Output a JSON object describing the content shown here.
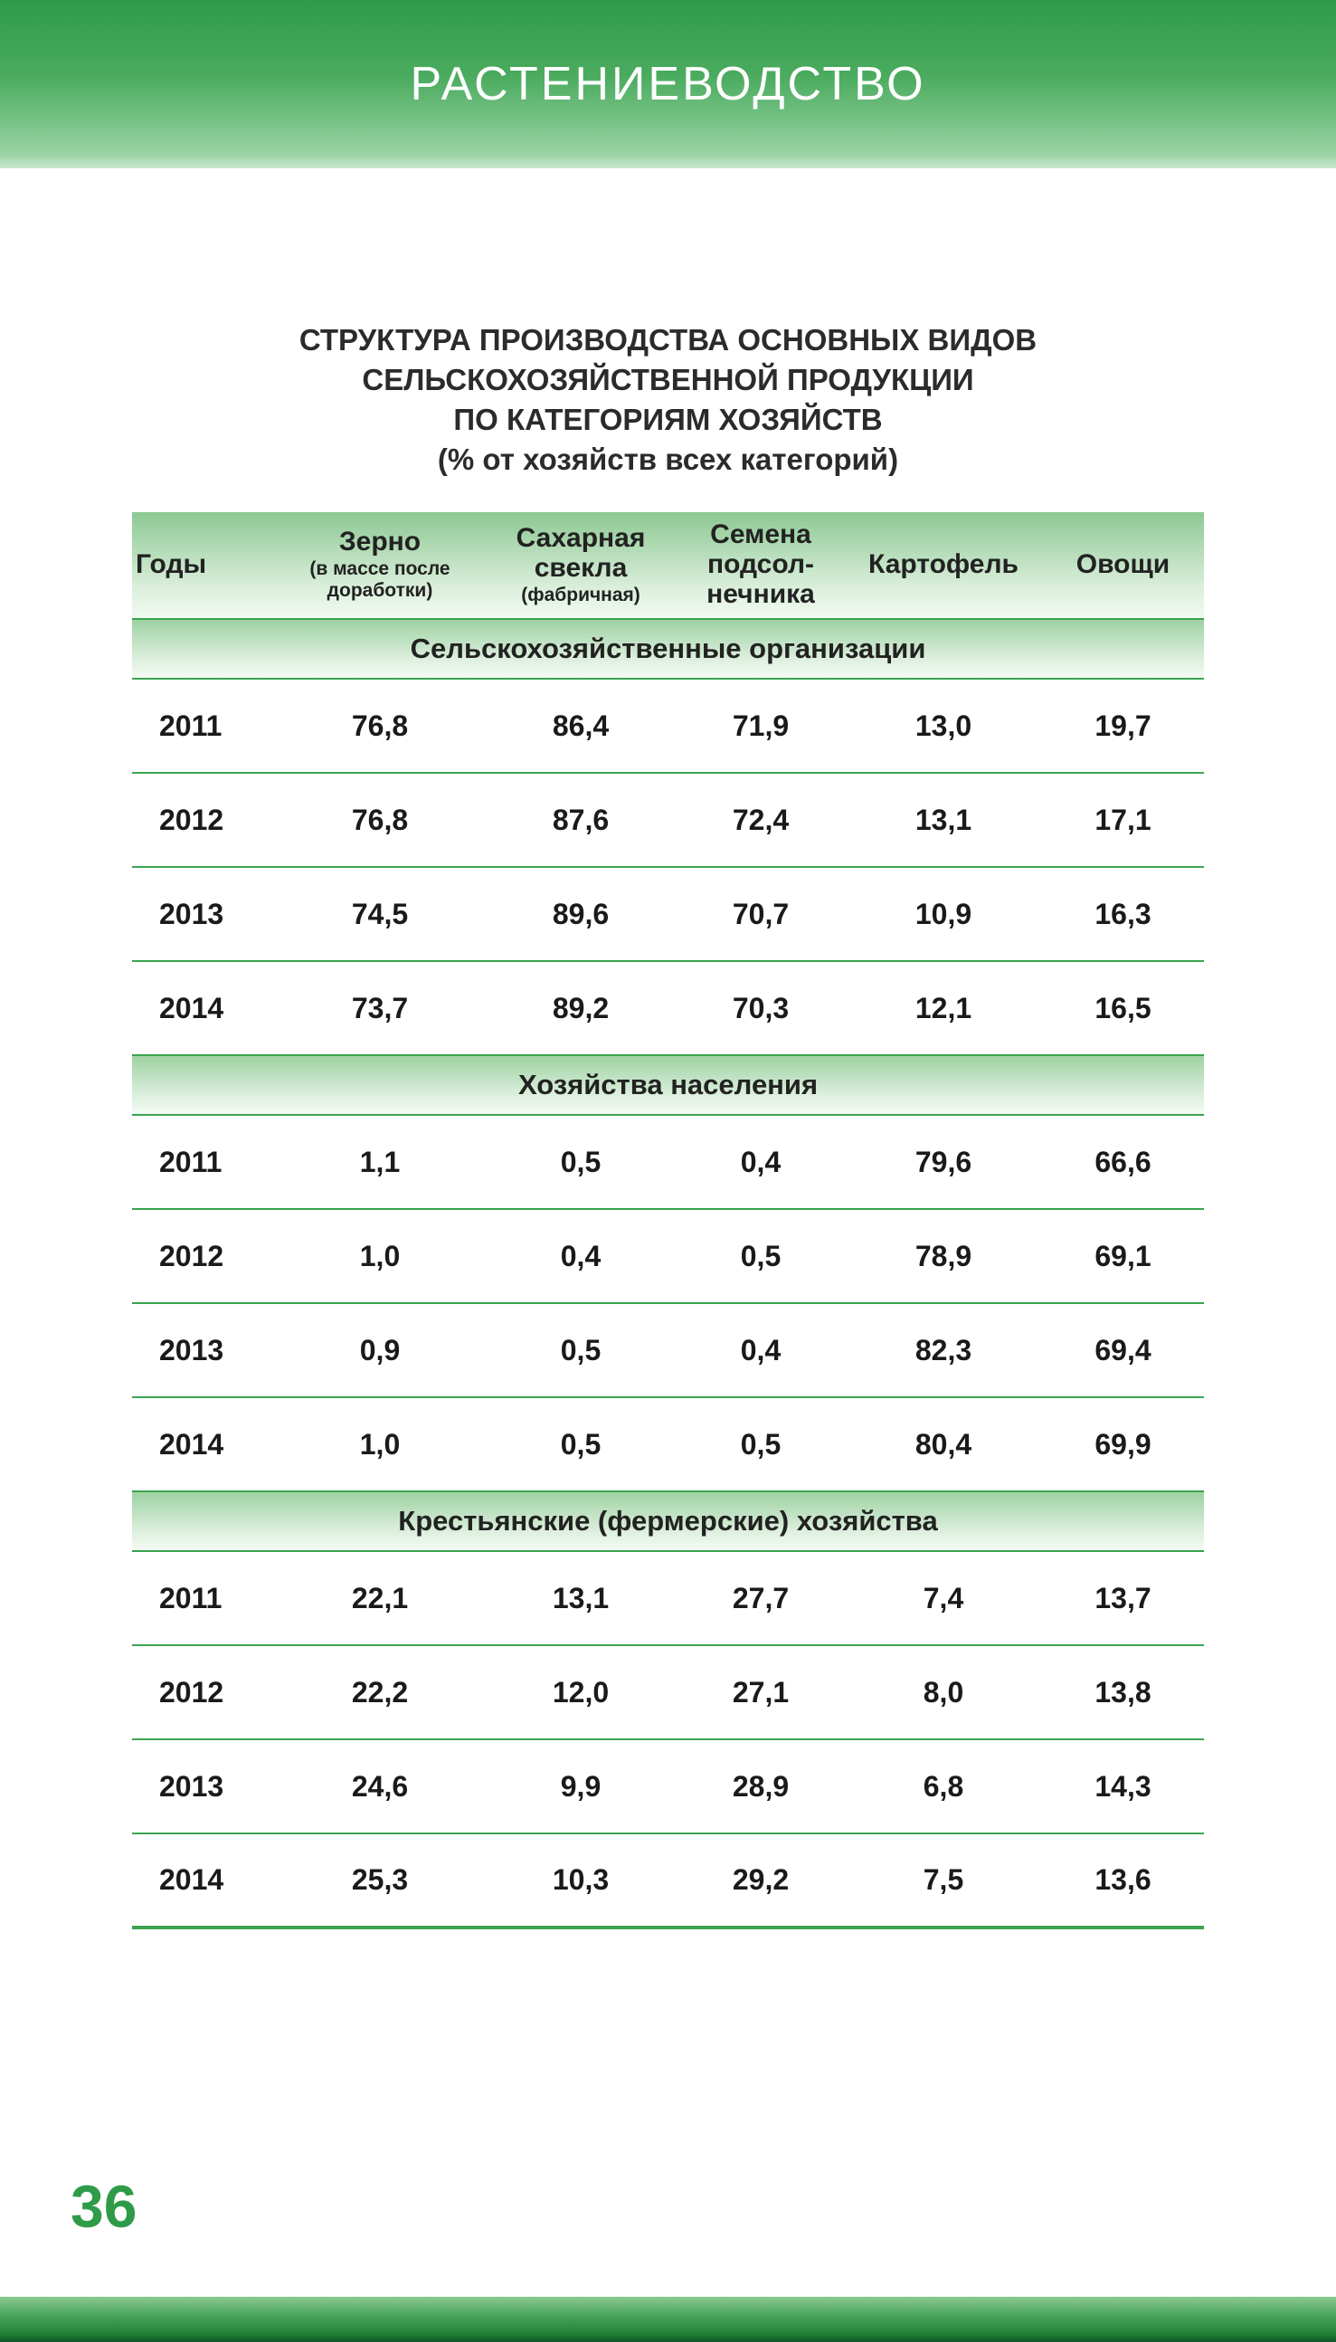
{
  "banner": {
    "title": "РАСТЕНИЕВОДСТВО"
  },
  "table": {
    "title_lines": [
      "СТРУКТУРА ПРОИЗВОДСТВА ОСНОВНЫХ ВИДОВ",
      "СЕЛЬСКОХОЗЯЙСТВЕННОЙ ПРОДУКЦИИ",
      "ПО КАТЕГОРИЯМ ХОЗЯЙСТВ",
      "(% от хозяйств всех категорий)"
    ],
    "columns": [
      {
        "title": [
          "Годы"
        ],
        "note": []
      },
      {
        "title": [
          "Зерно"
        ],
        "note": [
          "(в массе после",
          "доработки)"
        ]
      },
      {
        "title": [
          "Сахарная",
          "свекла"
        ],
        "note": [
          "(фабричная)"
        ]
      },
      {
        "title": [
          "Семена",
          "подсол-",
          "нечника"
        ],
        "note": []
      },
      {
        "title": [
          "Картофель"
        ],
        "note": []
      },
      {
        "title": [
          "Овощи"
        ],
        "note": []
      }
    ],
    "sections": [
      {
        "header": "Сельскохозяйственные организации",
        "rows": [
          [
            "2011",
            "76,8",
            "86,4",
            "71,9",
            "13,0",
            "19,7"
          ],
          [
            "2012",
            "76,8",
            "87,6",
            "72,4",
            "13,1",
            "17,1"
          ],
          [
            "2013",
            "74,5",
            "89,6",
            "70,7",
            "10,9",
            "16,3"
          ],
          [
            "2014",
            "73,7",
            "89,2",
            "70,3",
            "12,1",
            "16,5"
          ]
        ]
      },
      {
        "header": "Хозяйства населения",
        "rows": [
          [
            "2011",
            "1,1",
            "0,5",
            "0,4",
            "79,6",
            "66,6"
          ],
          [
            "2012",
            "1,0",
            "0,4",
            "0,5",
            "78,9",
            "69,1"
          ],
          [
            "2013",
            "0,9",
            "0,5",
            "0,4",
            "82,3",
            "69,4"
          ],
          [
            "2014",
            "1,0",
            "0,5",
            "0,5",
            "80,4",
            "69,9"
          ]
        ]
      },
      {
        "header": "Крестьянские (фермерские) хозяйства",
        "rows": [
          [
            "2011",
            "22,1",
            "13,1",
            "27,7",
            "7,4",
            "13,7"
          ],
          [
            "2012",
            "22,2",
            "12,0",
            "27,1",
            "8,0",
            "13,8"
          ],
          [
            "2013",
            "24,6",
            "9,9",
            "28,9",
            "6,8",
            "14,3"
          ],
          [
            "2014",
            "25,3",
            "10,3",
            "29,2",
            "7,5",
            "13,6"
          ]
        ]
      }
    ]
  },
  "footer": {
    "page_number": "36"
  },
  "colors": {
    "accent_green": "#3aa34f",
    "banner_green_top": "#2e9b4a",
    "banner_green_bottom": "#9bd3a5",
    "page_number_green": "#2f9b49"
  }
}
